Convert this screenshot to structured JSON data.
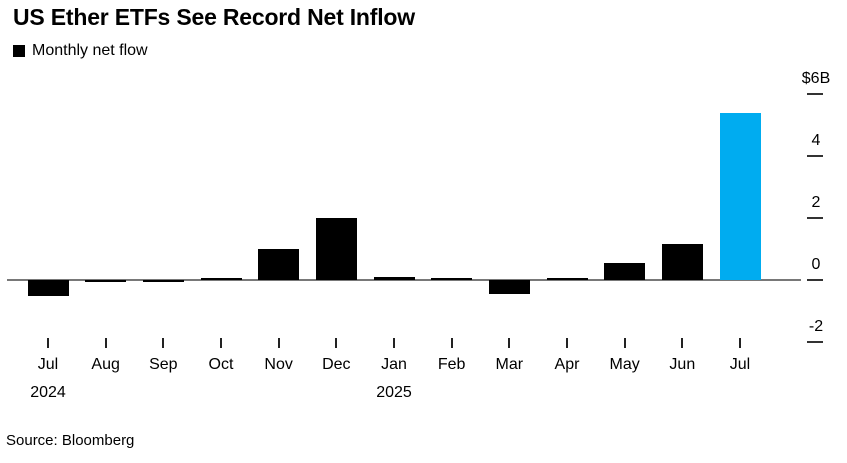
{
  "chart": {
    "title": "US Ether ETFs See Record Net Inflow",
    "legend": {
      "label": "Monthly net flow",
      "swatch_color": "#000000"
    },
    "source": "Source: Bloomberg"
  },
  "chart_data": {
    "type": "bar",
    "title": "US Ether ETFs See Record Net Inflow",
    "series_name": "Monthly net flow",
    "unit": "billions USD",
    "categories": [
      "Jul",
      "Aug",
      "Sep",
      "Oct",
      "Nov",
      "Dec",
      "Jan",
      "Feb",
      "Mar",
      "Apr",
      "May",
      "Jun",
      "Jul"
    ],
    "year_labels": [
      {
        "text": "2024",
        "under_index": 0
      },
      {
        "text": "2025",
        "under_index": 6
      }
    ],
    "values": [
      -0.5,
      -0.06,
      -0.06,
      0.08,
      1.0,
      2.0,
      0.1,
      0.08,
      -0.45,
      0.08,
      0.55,
      1.15,
      5.4
    ],
    "highlight_index": 12,
    "bar_color": "#000000",
    "highlight_color": "#00acf0",
    "axis_line_color": "#787878",
    "tick_color": "#333333",
    "month_tick_color": "#222222",
    "y_ticks": [
      {
        "label": "$6B",
        "value": 6
      },
      {
        "label": "4",
        "value": 4
      },
      {
        "label": "2",
        "value": 2
      },
      {
        "label": "0",
        "value": 0
      },
      {
        "label": "-2",
        "value": -2
      }
    ],
    "ylim": [
      -2.8,
      6.6
    ],
    "grid": false,
    "legend_position": "top-left",
    "y_axis_position": "right"
  }
}
